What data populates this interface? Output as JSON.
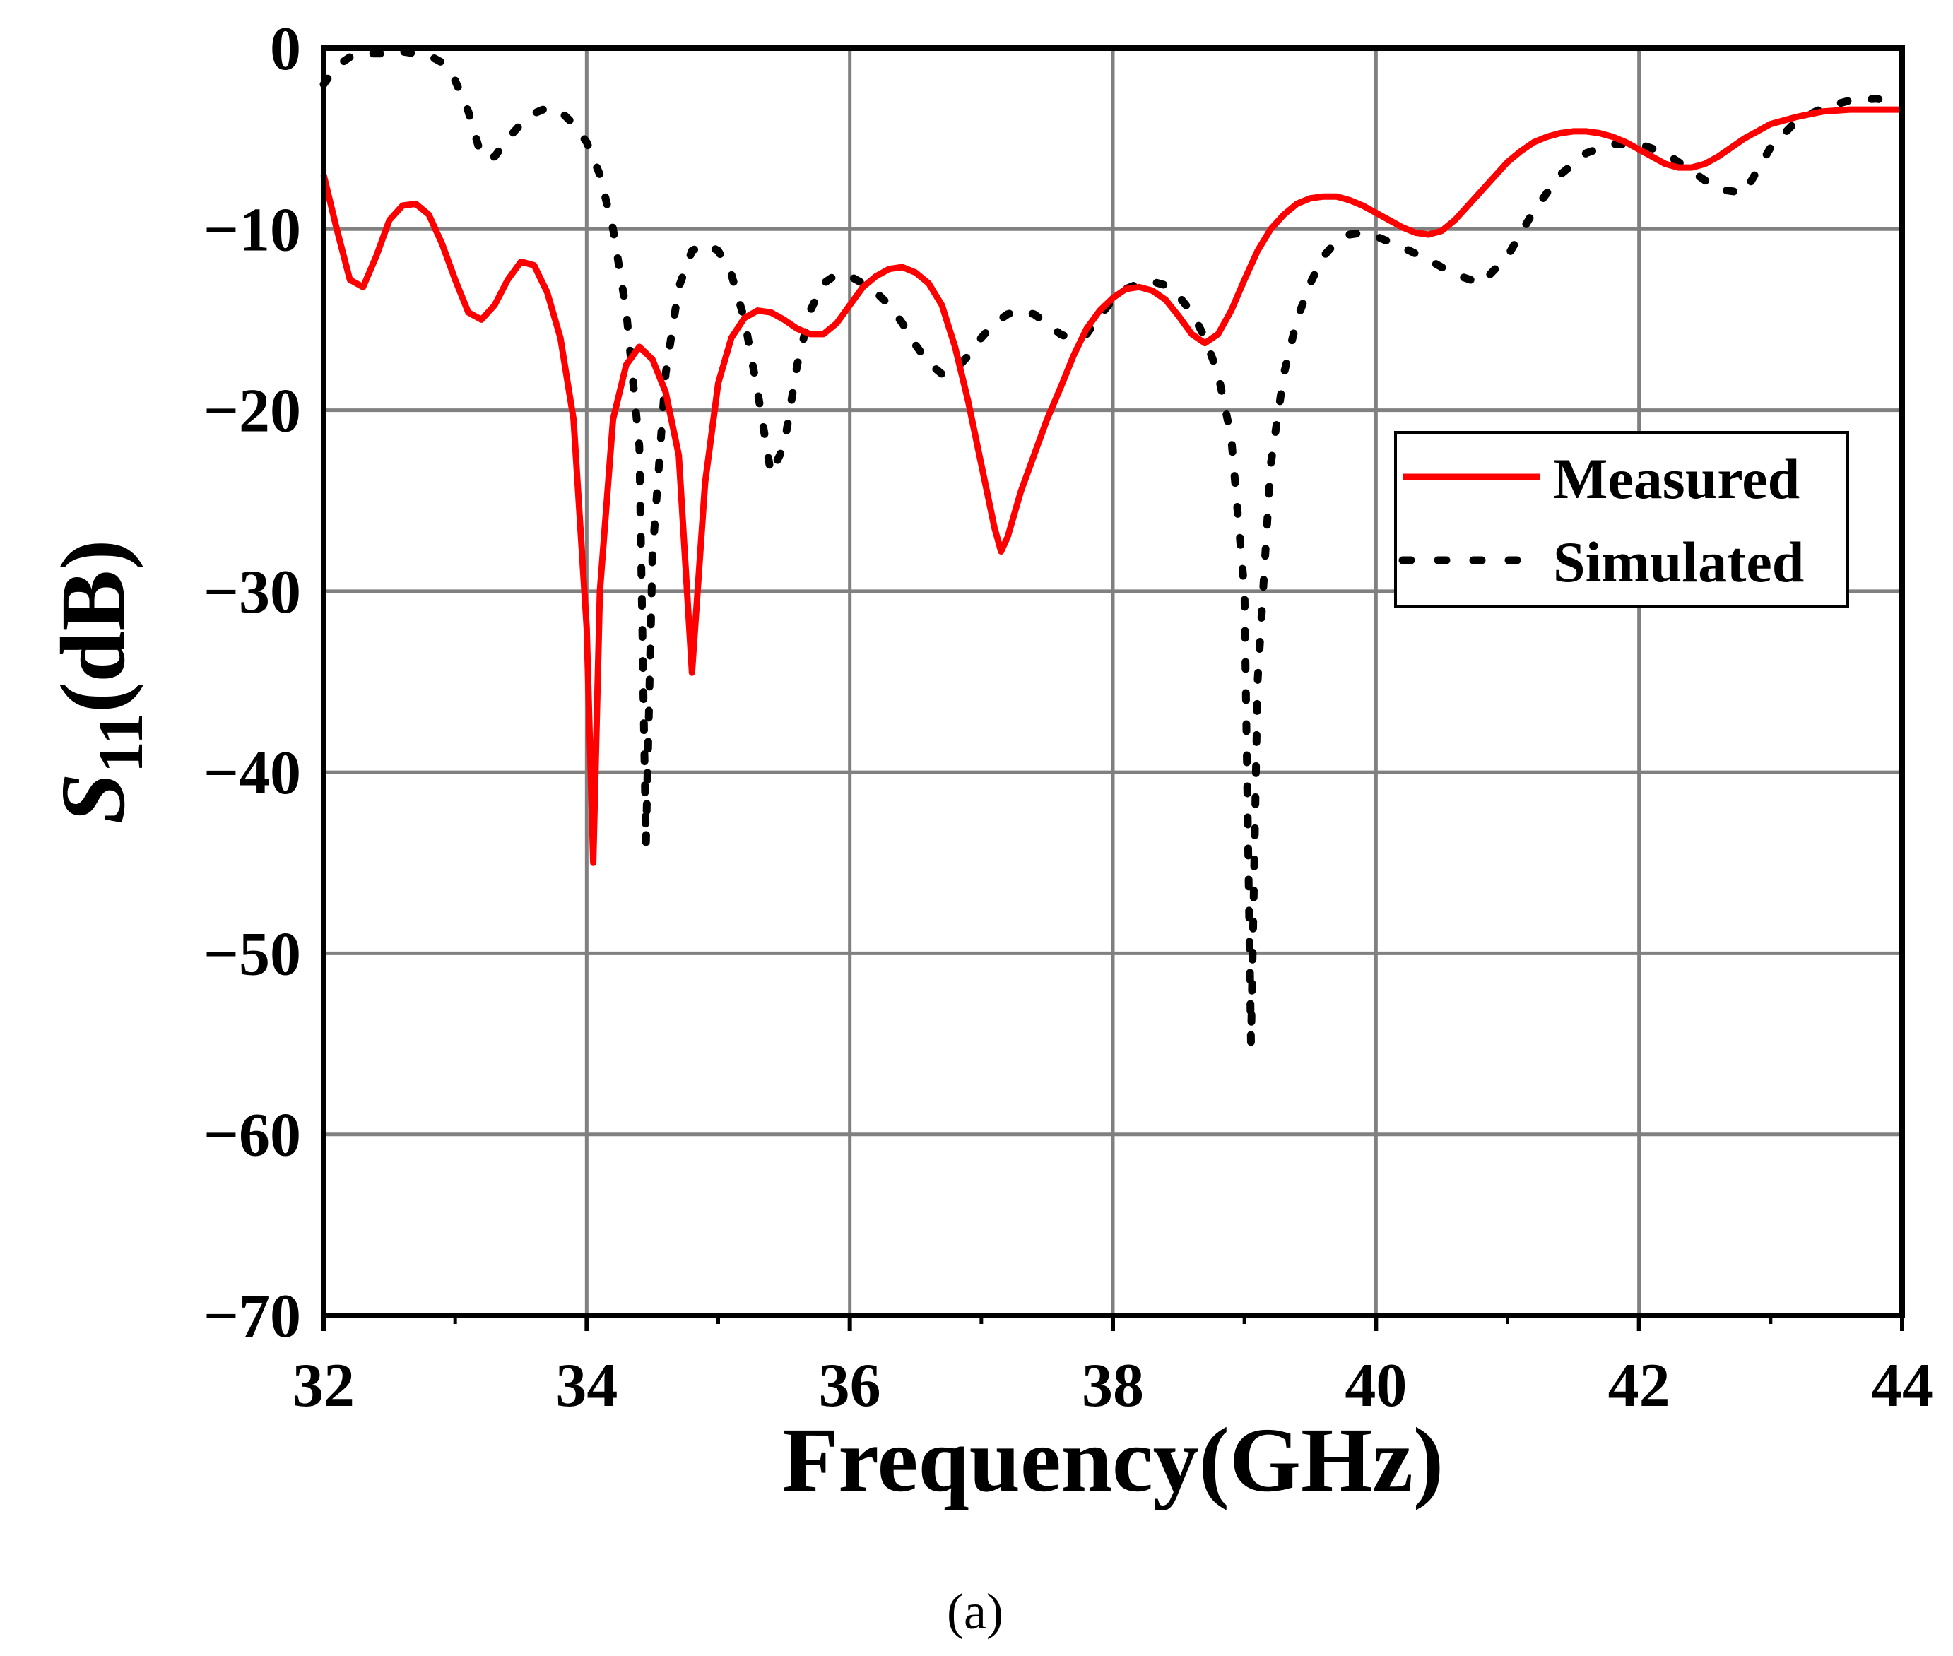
{
  "chart_data": {
    "type": "line",
    "title": "",
    "xlabel": "Frequency(GHz)",
    "ylabel": {
      "main": "S",
      "sub": "11",
      "unit": "(dB)"
    },
    "xlim": [
      32,
      44
    ],
    "ylim": [
      -70,
      0
    ],
    "xticks": [
      32,
      34,
      36,
      38,
      40,
      42,
      44
    ],
    "xtick_labels": [
      "32",
      "34",
      "36",
      "38",
      "40",
      "42",
      "44"
    ],
    "yticks": [
      0,
      -10,
      -20,
      -30,
      -40,
      -50,
      -60,
      -70
    ],
    "ytick_labels": [
      "0",
      "−10",
      "−20",
      "−30",
      "−40",
      "−50",
      "−60",
      "−70"
    ],
    "grid": true,
    "legend_position": "right",
    "caption": "(a)",
    "series": [
      {
        "name": "Measured",
        "color": "#ff0000",
        "style": "solid",
        "points": [
          [
            32.0,
            -7.0
          ],
          [
            32.1,
            -10.0
          ],
          [
            32.2,
            -12.8
          ],
          [
            32.3,
            -13.2
          ],
          [
            32.4,
            -11.5
          ],
          [
            32.5,
            -9.5
          ],
          [
            32.6,
            -8.7
          ],
          [
            32.7,
            -8.6
          ],
          [
            32.8,
            -9.2
          ],
          [
            32.9,
            -10.8
          ],
          [
            33.0,
            -12.8
          ],
          [
            33.1,
            -14.6
          ],
          [
            33.2,
            -15.0
          ],
          [
            33.3,
            -14.2
          ],
          [
            33.4,
            -12.8
          ],
          [
            33.5,
            -11.8
          ],
          [
            33.6,
            -12.0
          ],
          [
            33.7,
            -13.5
          ],
          [
            33.8,
            -16.0
          ],
          [
            33.9,
            -20.5
          ],
          [
            34.0,
            -32.0
          ],
          [
            34.05,
            -45.0
          ],
          [
            34.1,
            -30.0
          ],
          [
            34.2,
            -20.5
          ],
          [
            34.3,
            -17.5
          ],
          [
            34.4,
            -16.5
          ],
          [
            34.5,
            -17.2
          ],
          [
            34.6,
            -19.0
          ],
          [
            34.7,
            -22.5
          ],
          [
            34.8,
            -34.5
          ],
          [
            34.9,
            -24.0
          ],
          [
            35.0,
            -18.5
          ],
          [
            35.1,
            -16.0
          ],
          [
            35.2,
            -14.9
          ],
          [
            35.3,
            -14.5
          ],
          [
            35.4,
            -14.6
          ],
          [
            35.5,
            -15.0
          ],
          [
            35.6,
            -15.5
          ],
          [
            35.7,
            -15.8
          ],
          [
            35.8,
            -15.8
          ],
          [
            35.9,
            -15.2
          ],
          [
            36.0,
            -14.2
          ],
          [
            36.1,
            -13.2
          ],
          [
            36.2,
            -12.6
          ],
          [
            36.3,
            -12.2
          ],
          [
            36.4,
            -12.1
          ],
          [
            36.5,
            -12.4
          ],
          [
            36.6,
            -13.0
          ],
          [
            36.7,
            -14.2
          ],
          [
            36.8,
            -16.5
          ],
          [
            36.9,
            -19.5
          ],
          [
            37.0,
            -23.0
          ],
          [
            37.1,
            -26.5
          ],
          [
            37.15,
            -27.8
          ],
          [
            37.2,
            -27.0
          ],
          [
            37.3,
            -24.5
          ],
          [
            37.4,
            -22.5
          ],
          [
            37.5,
            -20.5
          ],
          [
            37.6,
            -18.8
          ],
          [
            37.7,
            -17.0
          ],
          [
            37.8,
            -15.5
          ],
          [
            37.9,
            -14.5
          ],
          [
            38.0,
            -13.8
          ],
          [
            38.1,
            -13.3
          ],
          [
            38.2,
            -13.2
          ],
          [
            38.3,
            -13.4
          ],
          [
            38.4,
            -13.9
          ],
          [
            38.5,
            -14.8
          ],
          [
            38.6,
            -15.8
          ],
          [
            38.7,
            -16.3
          ],
          [
            38.8,
            -15.8
          ],
          [
            38.9,
            -14.5
          ],
          [
            39.0,
            -12.8
          ],
          [
            39.1,
            -11.2
          ],
          [
            39.2,
            -10.0
          ],
          [
            39.3,
            -9.2
          ],
          [
            39.4,
            -8.6
          ],
          [
            39.5,
            -8.3
          ],
          [
            39.6,
            -8.2
          ],
          [
            39.7,
            -8.2
          ],
          [
            39.8,
            -8.4
          ],
          [
            39.9,
            -8.7
          ],
          [
            40.0,
            -9.1
          ],
          [
            40.1,
            -9.5
          ],
          [
            40.2,
            -9.9
          ],
          [
            40.3,
            -10.2
          ],
          [
            40.4,
            -10.3
          ],
          [
            40.5,
            -10.1
          ],
          [
            40.6,
            -9.5
          ],
          [
            40.7,
            -8.7
          ],
          [
            40.8,
            -7.9
          ],
          [
            40.9,
            -7.1
          ],
          [
            41.0,
            -6.3
          ],
          [
            41.1,
            -5.7
          ],
          [
            41.2,
            -5.2
          ],
          [
            41.3,
            -4.9
          ],
          [
            41.4,
            -4.7
          ],
          [
            41.5,
            -4.6
          ],
          [
            41.6,
            -4.6
          ],
          [
            41.7,
            -4.7
          ],
          [
            41.8,
            -4.9
          ],
          [
            41.9,
            -5.2
          ],
          [
            42.0,
            -5.6
          ],
          [
            42.1,
            -6.0
          ],
          [
            42.2,
            -6.4
          ],
          [
            42.3,
            -6.6
          ],
          [
            42.4,
            -6.6
          ],
          [
            42.5,
            -6.4
          ],
          [
            42.6,
            -6.0
          ],
          [
            42.7,
            -5.5
          ],
          [
            42.8,
            -5.0
          ],
          [
            42.9,
            -4.6
          ],
          [
            43.0,
            -4.2
          ],
          [
            43.2,
            -3.8
          ],
          [
            43.4,
            -3.5
          ],
          [
            43.6,
            -3.4
          ],
          [
            43.8,
            -3.4
          ],
          [
            44.0,
            -3.4
          ]
        ]
      },
      {
        "name": "Simulated",
        "color": "#000000",
        "style": "dotted",
        "points": [
          [
            32.0,
            -2.0
          ],
          [
            32.1,
            -1.0
          ],
          [
            32.2,
            -0.5
          ],
          [
            32.3,
            -0.3
          ],
          [
            32.4,
            -0.3
          ],
          [
            32.5,
            -0.3
          ],
          [
            32.6,
            -0.2
          ],
          [
            32.7,
            -0.3
          ],
          [
            32.8,
            -0.4
          ],
          [
            32.9,
            -0.8
          ],
          [
            33.0,
            -1.8
          ],
          [
            33.1,
            -3.5
          ],
          [
            33.2,
            -6.0
          ],
          [
            33.3,
            -6.0
          ],
          [
            33.4,
            -5.0
          ],
          [
            33.5,
            -4.2
          ],
          [
            33.6,
            -3.6
          ],
          [
            33.7,
            -3.3
          ],
          [
            33.8,
            -3.5
          ],
          [
            33.9,
            -4.2
          ],
          [
            34.0,
            -5.2
          ],
          [
            34.1,
            -7.0
          ],
          [
            34.2,
            -10.0
          ],
          [
            34.3,
            -14.5
          ],
          [
            34.4,
            -22.0
          ],
          [
            34.45,
            -44.0
          ],
          [
            34.5,
            -28.0
          ],
          [
            34.6,
            -18.0
          ],
          [
            34.7,
            -13.2
          ],
          [
            34.8,
            -11.2
          ],
          [
            34.9,
            -10.8
          ],
          [
            35.0,
            -11.2
          ],
          [
            35.1,
            -12.5
          ],
          [
            35.2,
            -15.0
          ],
          [
            35.3,
            -19.0
          ],
          [
            35.4,
            -23.5
          ],
          [
            35.5,
            -22.0
          ],
          [
            35.6,
            -17.5
          ],
          [
            35.7,
            -14.5
          ],
          [
            35.8,
            -13.0
          ],
          [
            35.9,
            -12.5
          ],
          [
            36.0,
            -12.6
          ],
          [
            36.1,
            -13.0
          ],
          [
            36.2,
            -13.5
          ],
          [
            36.3,
            -14.2
          ],
          [
            36.4,
            -15.2
          ],
          [
            36.5,
            -16.4
          ],
          [
            36.6,
            -17.4
          ],
          [
            36.7,
            -18.0
          ],
          [
            36.8,
            -17.8
          ],
          [
            36.9,
            -17.0
          ],
          [
            37.0,
            -16.0
          ],
          [
            37.1,
            -15.2
          ],
          [
            37.2,
            -14.7
          ],
          [
            37.3,
            -14.5
          ],
          [
            37.4,
            -14.7
          ],
          [
            37.5,
            -15.2
          ],
          [
            37.6,
            -15.8
          ],
          [
            37.7,
            -16.1
          ],
          [
            37.8,
            -15.8
          ],
          [
            37.9,
            -14.8
          ],
          [
            38.0,
            -13.9
          ],
          [
            38.1,
            -13.3
          ],
          [
            38.2,
            -13.0
          ],
          [
            38.3,
            -12.9
          ],
          [
            38.4,
            -13.1
          ],
          [
            38.5,
            -13.7
          ],
          [
            38.6,
            -14.6
          ],
          [
            38.7,
            -16.0
          ],
          [
            38.8,
            -18.0
          ],
          [
            38.9,
            -21.5
          ],
          [
            39.0,
            -30.0
          ],
          [
            39.05,
            -55.0
          ],
          [
            39.1,
            -35.0
          ],
          [
            39.2,
            -23.0
          ],
          [
            39.3,
            -18.0
          ],
          [
            39.4,
            -15.0
          ],
          [
            39.5,
            -13.0
          ],
          [
            39.6,
            -11.5
          ],
          [
            39.7,
            -10.7
          ],
          [
            39.8,
            -10.3
          ],
          [
            39.9,
            -10.2
          ],
          [
            40.0,
            -10.4
          ],
          [
            40.2,
            -11.0
          ],
          [
            40.4,
            -11.7
          ],
          [
            40.6,
            -12.5
          ],
          [
            40.8,
            -13.0
          ],
          [
            41.0,
            -11.5
          ],
          [
            41.2,
            -9.0
          ],
          [
            41.4,
            -7.0
          ],
          [
            41.6,
            -5.8
          ],
          [
            41.8,
            -5.3
          ],
          [
            42.0,
            -5.3
          ],
          [
            42.2,
            -5.8
          ],
          [
            42.4,
            -6.8
          ],
          [
            42.6,
            -7.8
          ],
          [
            42.8,
            -8.0
          ],
          [
            43.0,
            -5.5
          ],
          [
            43.2,
            -4.0
          ],
          [
            43.4,
            -3.3
          ],
          [
            43.6,
            -2.9
          ],
          [
            43.8,
            -2.8
          ],
          [
            44.0,
            -3.0
          ]
        ]
      }
    ]
  }
}
